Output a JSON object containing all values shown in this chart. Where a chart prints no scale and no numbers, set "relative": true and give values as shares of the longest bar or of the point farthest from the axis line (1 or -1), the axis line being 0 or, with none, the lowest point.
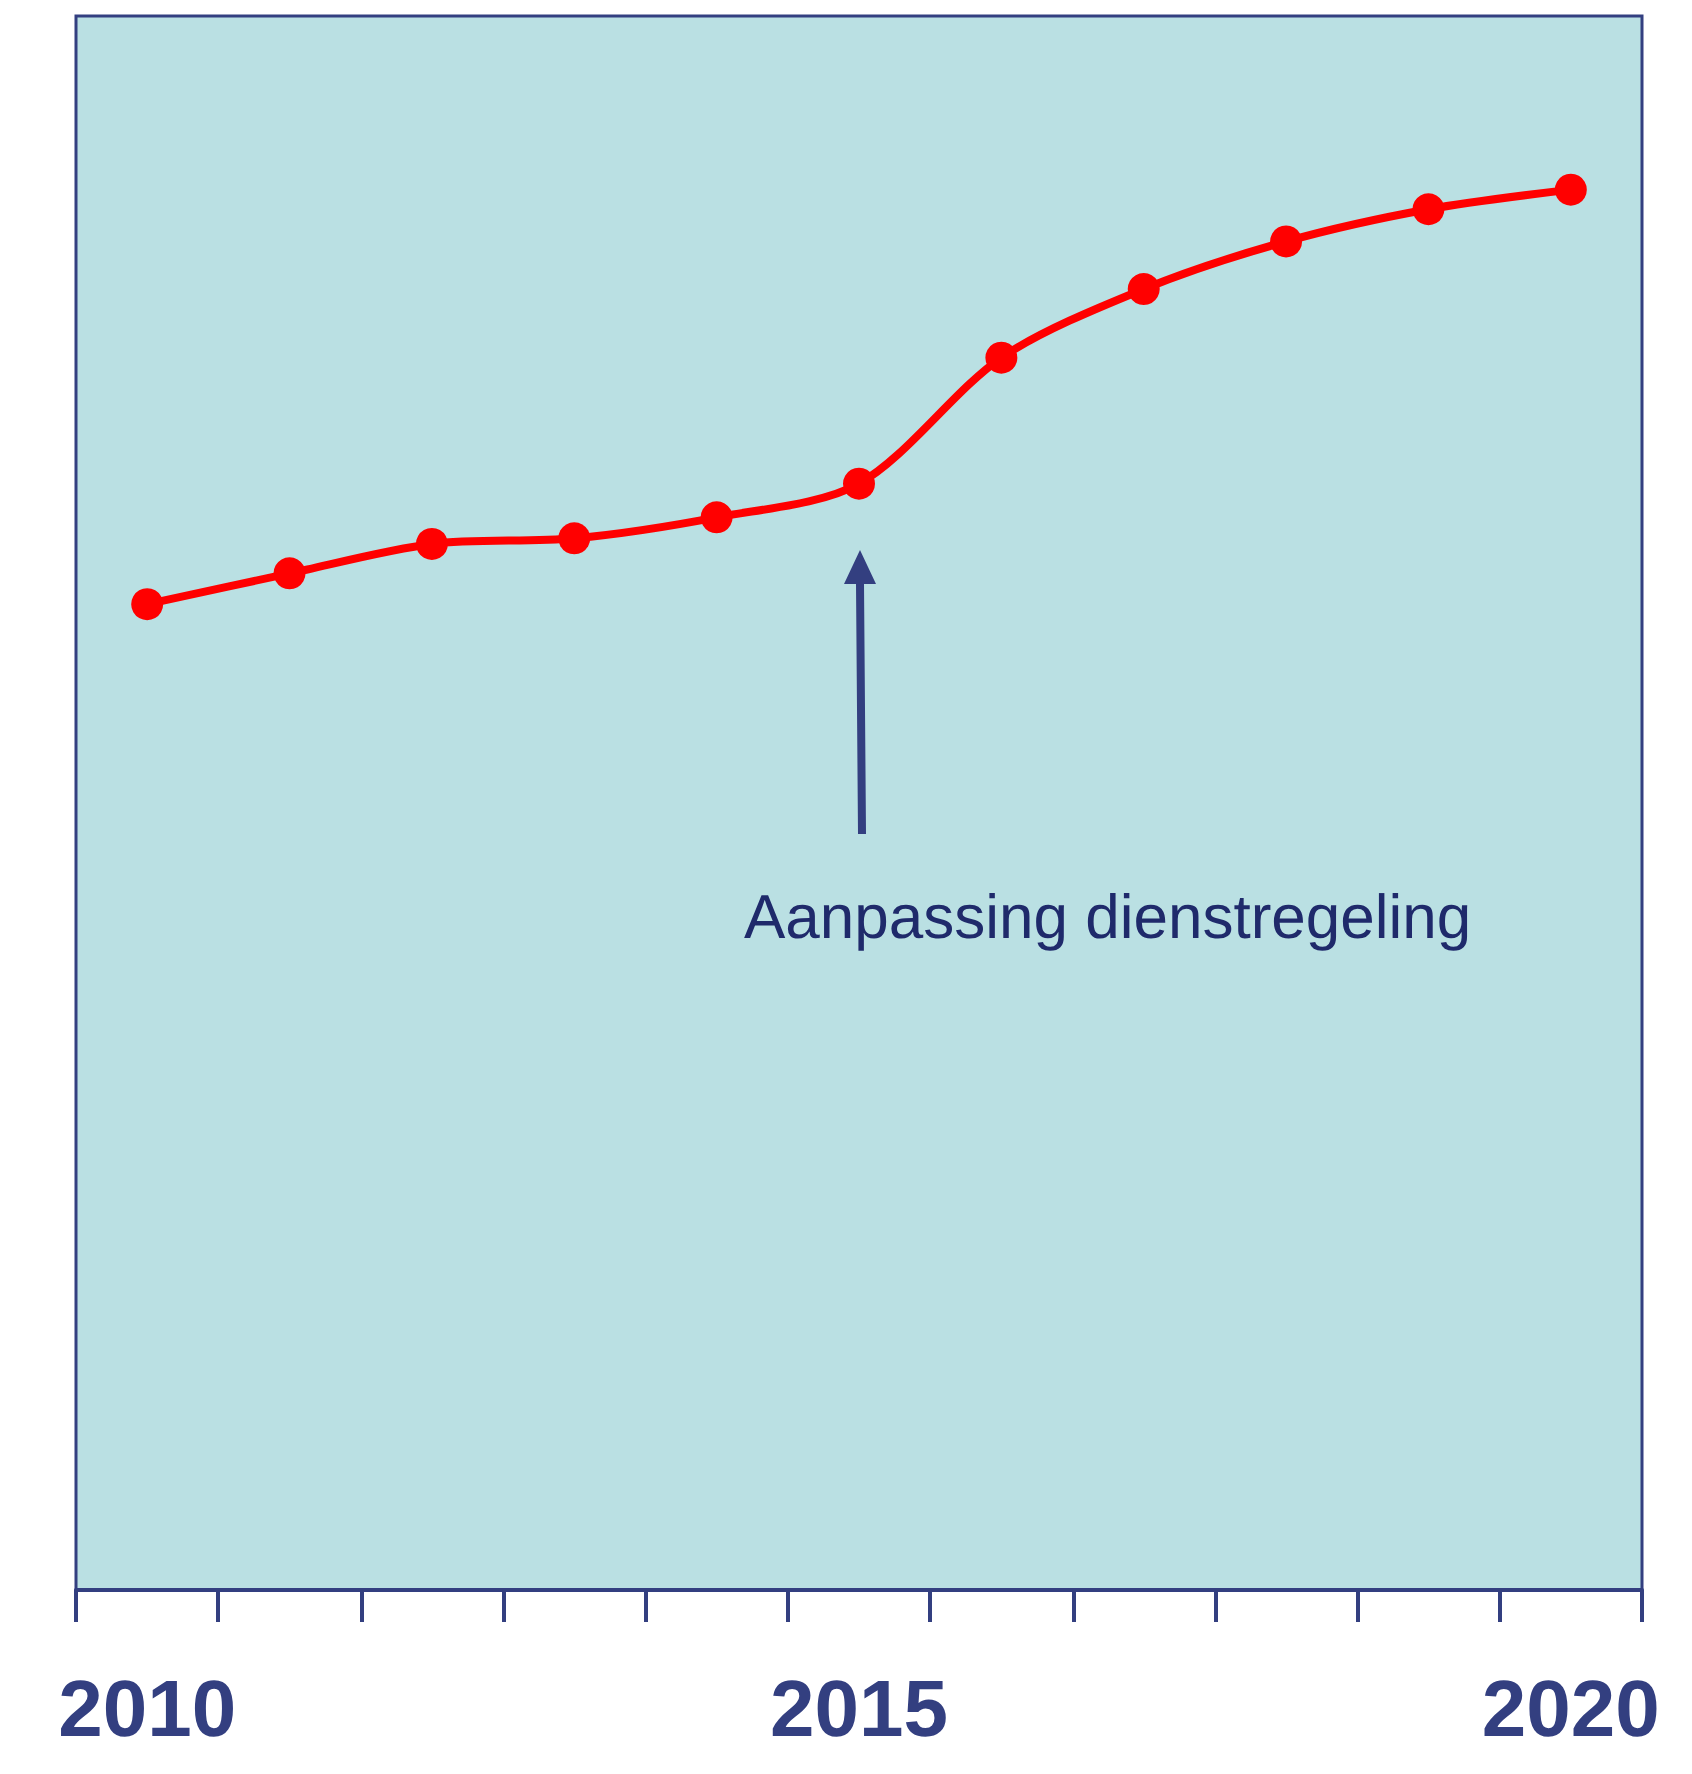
{
  "chart_data": {
    "type": "line",
    "relative": true,
    "marker": "circle",
    "color": "#ff0000",
    "categories": [
      "2010",
      null,
      null,
      null,
      null,
      "2015",
      null,
      null,
      null,
      null,
      "2020"
    ],
    "values": [
      0.704,
      0.726,
      0.747,
      0.751,
      0.766,
      0.79,
      0.88,
      0.929,
      0.963,
      0.986,
      1
    ],
    "annotations": [
      "Aanpassing dienstregeling"
    ]
  }
}
